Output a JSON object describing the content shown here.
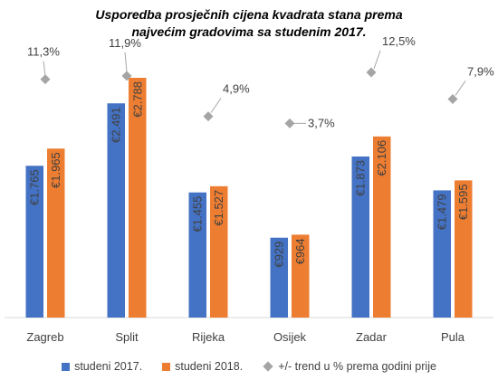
{
  "chart_data": {
    "type": "bar",
    "title_lines": [
      "Usporedba prosječnih cijena kvadrata stana prema",
      "najvećim gradovima sa studenim 2017."
    ],
    "categories": [
      "Zagreb",
      "Split",
      "Rijeka",
      "Osijek",
      "Zadar",
      "Pula"
    ],
    "series": [
      {
        "name": "studeni 2017.",
        "color": "#4472C4",
        "values": [
          1765,
          2491,
          1455,
          929,
          1873,
          1479
        ],
        "labels": [
          "€1.765",
          "€2.491",
          "€1.455",
          "€929",
          "€1.873",
          "€1.479"
        ]
      },
      {
        "name": "studeni 2018.",
        "color": "#ED7D31",
        "values": [
          1965,
          2788,
          1527,
          964,
          2106,
          1595
        ],
        "labels": [
          "€1.965",
          "€2.788",
          "€1.527",
          "€964",
          "€2.106",
          "€1.595"
        ]
      }
    ],
    "trend": {
      "name": "+/- trend u % prema godini prije",
      "color": "#A5A5A5",
      "values": [
        11.3,
        11.9,
        4.9,
        3.7,
        12.5,
        7.9
      ],
      "labels": [
        "11,3%",
        "11,9%",
        "4,9%",
        "3,7%",
        "12,5%",
        "7,9%"
      ]
    },
    "ylim": [
      0,
      3000
    ],
    "grid": false,
    "legend_position": "bottom"
  }
}
